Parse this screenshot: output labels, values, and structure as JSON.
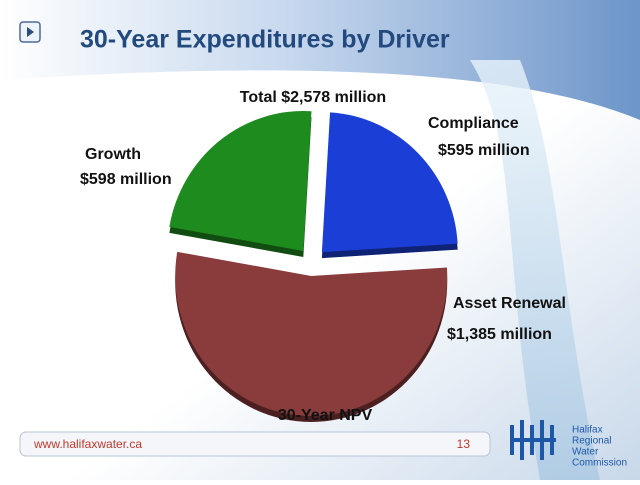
{
  "chart_data": {
    "type": "pie",
    "title": "30-Year Expenditures by Driver",
    "total_label": "Total $2,578 million",
    "footnote": "30-Year NPV",
    "categories": [
      "Compliance",
      "Asset Renewal",
      "Growth"
    ],
    "values": [
      595,
      1385,
      598
    ],
    "value_labels": [
      "$595 million",
      "$1,385 million",
      "$598 million"
    ],
    "colors": [
      "#1b3fd6",
      "#8a3b3c",
      "#1e8b1e"
    ]
  },
  "slide": {
    "website": "www.halifaxwater.ca",
    "page": "13",
    "logo": [
      "Halifax",
      "Regional",
      "Water",
      "Commission"
    ]
  }
}
